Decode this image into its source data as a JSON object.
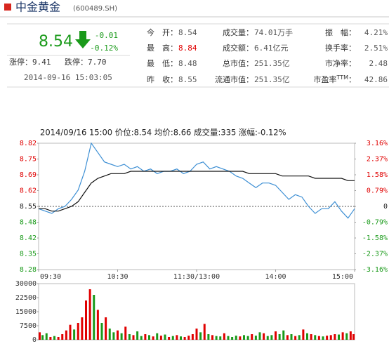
{
  "header": {
    "title": "中金黄金",
    "code": "(600489.SH)"
  },
  "quote": {
    "price": "8.54",
    "change": "-0.01",
    "change_pct": "-0.12%",
    "limit_up_label": "涨停：",
    "limit_up": "9.41",
    "limit_down_label": "跌停：",
    "limit_down": "7.70",
    "time": "2014-09-16 15:03:05",
    "down_color": "#1a9a1a",
    "stats": [
      [
        {
          "label": "今　开：",
          "value": "8.54"
        },
        {
          "label": "成交量：",
          "value": "74.01万手"
        },
        {
          "label": "振　幅：",
          "value": "4.21%"
        }
      ],
      [
        {
          "label": "最　高：",
          "value": "8.84",
          "color": "#e00000"
        },
        {
          "label": "成交额：",
          "value": "6.41亿元"
        },
        {
          "label": "换手率：",
          "value": "2.51%"
        }
      ],
      [
        {
          "label": "最　低：",
          "value": "8.48"
        },
        {
          "label": "总市值：",
          "value": "251.35亿"
        },
        {
          "label": "市净率：",
          "value": "2.48"
        }
      ],
      [
        {
          "label": "昨　收：",
          "value": "8.55"
        },
        {
          "label": "流通市值：",
          "value": "251.35亿"
        },
        {
          "label": "市盈率",
          "sup": "TTM",
          "after": "：",
          "value": "42.86"
        }
      ]
    ]
  },
  "chart_data": [
    {
      "type": "line",
      "title": "2014/09/16 15:00 价位:8.54 均价:8.66 成交量:335 涨幅:-0.12%",
      "x": [
        0,
        5,
        10,
        15,
        20,
        25,
        30,
        35,
        40,
        45,
        50,
        55,
        60,
        65,
        70,
        75,
        80,
        85,
        90,
        95,
        100,
        105,
        110,
        115,
        120,
        125,
        130,
        135,
        140,
        145,
        150,
        155,
        160,
        165,
        170,
        175,
        180,
        185,
        190,
        195,
        200,
        205,
        210,
        215,
        220,
        225,
        230,
        235,
        240
      ],
      "xlim": [
        0,
        240
      ],
      "xticks": [
        {
          "value": 0,
          "label": "09:30"
        },
        {
          "value": 60,
          "label": "10:30"
        },
        {
          "value": 120,
          "label": "11:30/13:00"
        },
        {
          "value": 180,
          "label": "14:00"
        },
        {
          "value": 240,
          "label": "15:00"
        }
      ],
      "ylim": [
        8.28,
        8.82
      ],
      "yticks": [
        8.82,
        {
          "value": 8.7525,
          "label": "8.75"
        },
        {
          "value": 8.685,
          "label": "8.69"
        },
        {
          "value": 8.6175,
          "label": "8.62"
        },
        8.55,
        {
          "value": 8.4825,
          "label": "8.48"
        },
        {
          "value": 8.415,
          "label": "8.42"
        },
        {
          "value": 8.3475,
          "label": "8.35"
        },
        8.28
      ],
      "y2lim": [
        -3.16,
        3.16
      ],
      "y2ticks": [
        {
          "value": 3.16,
          "label": "3.16%"
        },
        {
          "value": 2.37,
          "label": "2.37%"
        },
        {
          "value": 1.58,
          "label": "1.58%"
        },
        {
          "value": 0.79,
          "label": "0.79%"
        },
        0,
        {
          "value": -0.79,
          "label": "-0.79%"
        },
        {
          "value": -1.58,
          "label": "-1.58%"
        },
        {
          "value": -2.37,
          "label": "-2.37%"
        },
        {
          "value": -3.16,
          "label": "-3.16%"
        }
      ],
      "ref_line": 8.55,
      "up_color": "#e00000",
      "down_color": "#1a9a1a",
      "series": [
        {
          "color": "#3d8fd4",
          "values": [
            8.54,
            8.53,
            8.52,
            8.54,
            8.55,
            8.58,
            8.62,
            8.7,
            8.82,
            8.78,
            8.74,
            8.73,
            8.72,
            8.73,
            8.71,
            8.72,
            8.7,
            8.71,
            8.69,
            8.7,
            8.7,
            8.71,
            8.69,
            8.7,
            8.73,
            8.74,
            8.71,
            8.72,
            8.71,
            8.7,
            8.68,
            8.67,
            8.65,
            8.63,
            8.65,
            8.65,
            8.64,
            8.61,
            8.58,
            8.6,
            8.59,
            8.55,
            8.52,
            8.54,
            8.54,
            8.57,
            8.53,
            8.5,
            8.54
          ]
        },
        {
          "color": "#111111",
          "values": [
            8.54,
            8.54,
            8.53,
            8.53,
            8.54,
            8.55,
            8.57,
            8.61,
            8.65,
            8.67,
            8.68,
            8.69,
            8.69,
            8.69,
            8.7,
            8.7,
            8.7,
            8.7,
            8.7,
            8.7,
            8.7,
            8.7,
            8.7,
            8.7,
            8.7,
            8.7,
            8.7,
            8.7,
            8.7,
            8.7,
            8.7,
            8.7,
            8.69,
            8.69,
            8.69,
            8.69,
            8.69,
            8.68,
            8.68,
            8.68,
            8.68,
            8.68,
            8.67,
            8.67,
            8.67,
            8.67,
            8.67,
            8.66,
            8.66
          ]
        }
      ]
    },
    {
      "type": "bar",
      "x": [
        0,
        3,
        6,
        9,
        12,
        15,
        18,
        21,
        24,
        27,
        30,
        33,
        36,
        39,
        42,
        45,
        48,
        51,
        54,
        57,
        60,
        63,
        66,
        69,
        72,
        75,
        78,
        81,
        84,
        87,
        90,
        93,
        96,
        99,
        102,
        105,
        108,
        111,
        114,
        117,
        120,
        123,
        126,
        129,
        132,
        135,
        138,
        141,
        144,
        147,
        150,
        153,
        156,
        159,
        162,
        165,
        168,
        171,
        174,
        177,
        180,
        183,
        186,
        189,
        192,
        195,
        198,
        201,
        204,
        207,
        210,
        213,
        216,
        219,
        222,
        225,
        228,
        231,
        234,
        237,
        240
      ],
      "xlim": [
        0,
        240
      ],
      "ylim": [
        0,
        30000
      ],
      "yticks": [
        0,
        7500,
        15000,
        22500,
        30000
      ],
      "values": [
        4000,
        2500,
        3500,
        1500,
        2000,
        1500,
        3000,
        5000,
        8000,
        5500,
        9000,
        12000,
        21000,
        27000,
        24000,
        16000,
        9000,
        12000,
        6000,
        4000,
        5000,
        3500,
        7000,
        3000,
        2500,
        4500,
        2000,
        3000,
        2500,
        1800,
        3500,
        2200,
        2800,
        1500,
        2000,
        2500,
        1800,
        1500,
        2200,
        3000,
        6000,
        4000,
        8500,
        3000,
        2500,
        2000,
        1800,
        3500,
        2000,
        1500,
        2200,
        1800,
        2500,
        2000,
        3000,
        2200,
        4000,
        3500,
        2000,
        2500,
        4500,
        3000,
        5000,
        2500,
        3000,
        2000,
        2500,
        5500,
        3500,
        3000,
        2500,
        2000,
        1800,
        2200,
        2500,
        3000,
        2800,
        4000,
        3500,
        4500,
        3000
      ],
      "colors": [
        "#e00000",
        "#1a9a1a",
        "#1a9a1a",
        "#e00000",
        "#1a9a1a",
        "#e00000",
        "#e00000",
        "#e00000",
        "#e00000",
        "#1a9a1a",
        "#e00000",
        "#e00000",
        "#e00000",
        "#e00000",
        "#1a9a1a",
        "#e00000",
        "#1a9a1a",
        "#e00000",
        "#1a9a1a",
        "#1a9a1a",
        "#e00000",
        "#1a9a1a",
        "#e00000",
        "#1a9a1a",
        "#e00000",
        "#1a9a1a",
        "#1a9a1a",
        "#e00000",
        "#1a9a1a",
        "#e00000",
        "#1a9a1a",
        "#e00000",
        "#1a9a1a",
        "#e00000",
        "#1a9a1a",
        "#e00000",
        "#1a9a1a",
        "#e00000",
        "#e00000",
        "#e00000",
        "#e00000",
        "#1a9a1a",
        "#e00000",
        "#1a9a1a",
        "#e00000",
        "#1a9a1a",
        "#1a9a1a",
        "#e00000",
        "#1a9a1a",
        "#1a9a1a",
        "#1a9a1a",
        "#e00000",
        "#1a9a1a",
        "#1a9a1a",
        "#e00000",
        "#1a9a1a",
        "#1a9a1a",
        "#e00000",
        "#1a9a1a",
        "#1a9a1a",
        "#e00000",
        "#1a9a1a",
        "#1a9a1a",
        "#e00000",
        "#1a9a1a",
        "#e00000",
        "#1a9a1a",
        "#e00000",
        "#1a9a1a",
        "#e00000",
        "#1a9a1a",
        "#e00000",
        "#1a9a1a",
        "#e00000",
        "#e00000",
        "#e00000",
        "#1a9a1a",
        "#e00000",
        "#1a9a1a",
        "#e00000",
        "#e00000"
      ]
    }
  ]
}
